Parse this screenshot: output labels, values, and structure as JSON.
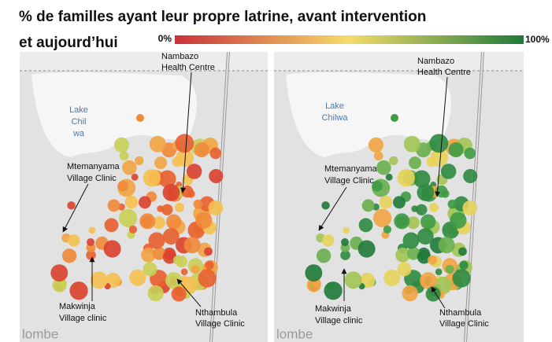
{
  "title": [
    "% de familles ayant leur propre latrine, avant intervention",
    "et aujourd’hui"
  ],
  "legend": {
    "min": "0%",
    "max": "100%"
  },
  "maps": [
    {
      "lake": [
        "Lake",
        "Chil",
        "wa"
      ],
      "labels": [
        [
          "Nambazo",
          "Health Centre"
        ],
        [
          "Mtemanyama",
          "Village Clinic"
        ],
        [
          "Makwinja",
          "Village clinic"
        ],
        [
          "Nthambula",
          "Village Clinic"
        ]
      ],
      "place": "lombe"
    },
    {
      "lake": [
        "Lake",
        "Chilwa"
      ],
      "labels": [
        [
          "Nambazo",
          "Health Centre"
        ],
        [
          "Mtemanyama",
          "Village Clinic"
        ],
        [
          "Makwinja",
          "Village clinic"
        ],
        [
          "Nthambula",
          "Village Clinic"
        ]
      ],
      "place": "lombe"
    }
  ]
}
